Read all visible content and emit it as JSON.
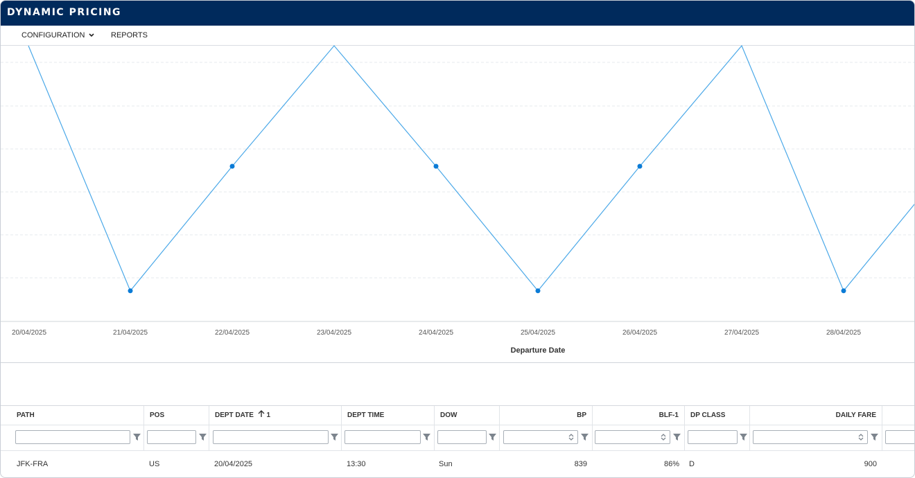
{
  "app": {
    "title": "DYNAMIC PRICING"
  },
  "menu": {
    "configuration": "CONFIGURATION",
    "reports": "REPORTS"
  },
  "colors": {
    "titlebar": "#002a5c",
    "series": "#4aa8e8",
    "point": "#0b7bd6"
  },
  "chart_data": {
    "type": "line",
    "x": [
      "20/04/2025",
      "21/04/2025",
      "22/04/2025",
      "23/04/2025",
      "24/04/2025",
      "25/04/2025",
      "26/04/2025",
      "27/04/2025",
      "28/04/2025"
    ],
    "values": [
      900,
      839,
      870,
      900,
      870,
      839,
      870,
      900,
      839
    ],
    "xlabel": "Departure Date",
    "ylabel": "",
    "ylim": [
      835,
      900
    ],
    "grid": "horizontal dashed",
    "marker_points": [
      "21/04/2025",
      "22/04/2025",
      "24/04/2025",
      "25/04/2025",
      "26/04/2025",
      "28/04/2025"
    ],
    "continues_right": true
  },
  "grid": {
    "headers": {
      "path": "PATH",
      "pos": "POS",
      "dept_date": "DEPT DATE",
      "dept_date_sort": "1",
      "dept_time": "DEPT TIME",
      "dow": "DOW",
      "bp": "BP",
      "blf1": "BLF-1",
      "dp_class": "DP CLASS",
      "daily_fare": "DAILY FARE"
    },
    "rows": [
      {
        "path": "JFK-FRA",
        "pos": "US",
        "dept_date": "20/04/2025",
        "dept_time": "13:30",
        "dow": "Sun",
        "bp": "839",
        "blf1": "86%",
        "dp_class": "D",
        "daily_fare": "900"
      }
    ]
  }
}
